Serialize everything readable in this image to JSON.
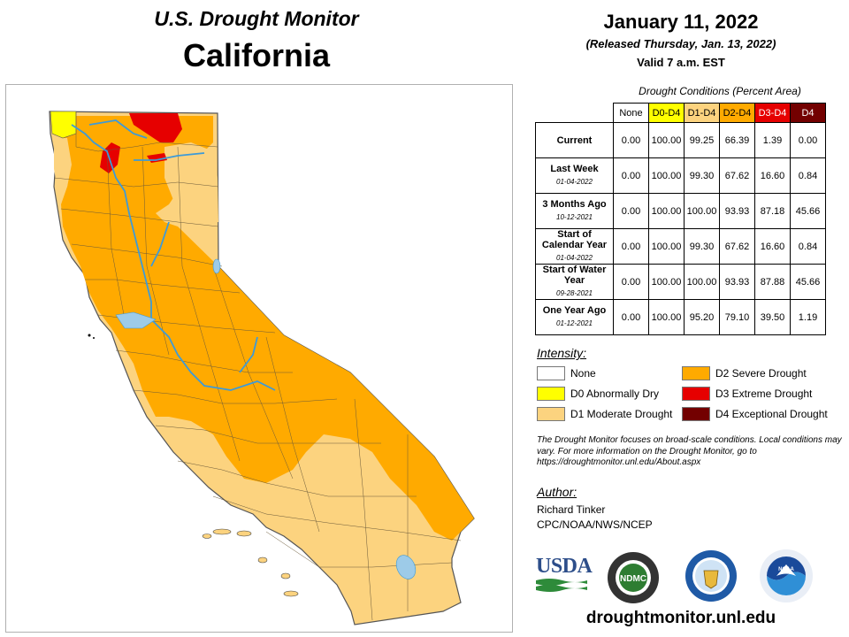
{
  "header": {
    "title": "U.S. Drought Monitor",
    "state": "California",
    "date": "January 11, 2022",
    "released": "(Released Thursday, Jan. 13, 2022)",
    "valid": "Valid 7 a.m. EST"
  },
  "table": {
    "caption": "Drought Conditions (Percent Area)",
    "columns": [
      "None",
      "D0-D4",
      "D1-D4",
      "D2-D4",
      "D3-D4",
      "D4"
    ],
    "rows": [
      {
        "label": "Current",
        "date": "",
        "values": [
          "0.00",
          "100.00",
          "99.25",
          "66.39",
          "1.39",
          "0.00"
        ]
      },
      {
        "label": "Last Week",
        "date": "01-04-2022",
        "values": [
          "0.00",
          "100.00",
          "99.30",
          "67.62",
          "16.60",
          "0.84"
        ]
      },
      {
        "label": "3 Months Ago",
        "date": "10-12-2021",
        "values": [
          "0.00",
          "100.00",
          "100.00",
          "93.93",
          "87.18",
          "45.66"
        ]
      },
      {
        "label": "Start of Calendar Year",
        "date": "01-04-2022",
        "values": [
          "0.00",
          "100.00",
          "99.30",
          "67.62",
          "16.60",
          "0.84"
        ]
      },
      {
        "label": "Start of Water Year",
        "date": "09-28-2021",
        "values": [
          "0.00",
          "100.00",
          "100.00",
          "93.93",
          "87.88",
          "45.66"
        ]
      },
      {
        "label": "One Year Ago",
        "date": "01-12-2021",
        "values": [
          "0.00",
          "100.00",
          "95.20",
          "79.10",
          "39.50",
          "1.19"
        ]
      }
    ]
  },
  "legend": {
    "title": "Intensity:",
    "items": [
      {
        "label": "None",
        "color": "#ffffff"
      },
      {
        "label": "D0 Abnormally Dry",
        "color": "#ffff00"
      },
      {
        "label": "D1 Moderate Drought",
        "color": "#fcd37f"
      },
      {
        "label": "D2 Severe Drought",
        "color": "#ffaa00"
      },
      {
        "label": "D3 Extreme Drought",
        "color": "#e60000"
      },
      {
        "label": "D4 Exceptional Drought",
        "color": "#730000"
      }
    ]
  },
  "note": "The Drought Monitor focuses on broad-scale conditions. Local conditions may vary. For more information on the Drought Monitor, go to https://droughtmonitor.unl.edu/About.aspx",
  "author": {
    "title": "Author:",
    "name": "Richard Tinker",
    "org": "CPC/NOAA/NWS/NCEP"
  },
  "logos": {
    "usda": "USDA",
    "ndmc": "NDMC",
    "noaa": "NOAA"
  },
  "map_colors": {
    "d1": "#fcd37f",
    "d2": "#ffaa00",
    "d3": "#e60000",
    "d0": "#ffff00",
    "water": "#9dcbe8",
    "river": "#3d9ad8"
  },
  "footer": {
    "url": "droughtmonitor.unl.edu"
  }
}
